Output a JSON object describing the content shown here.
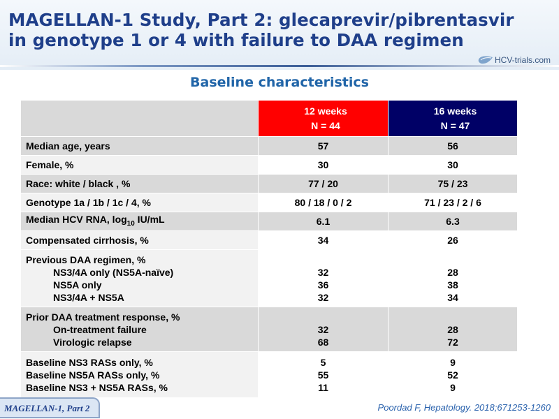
{
  "slide": {
    "title_line1": "MAGELLAN-1 Study, Part 2: glecaprevir/pibrentasvir",
    "title_line2": "in genotype 1 or 4 with failure to DAA regimen",
    "logo_text": "HCV-trials.com",
    "subtitle": "Baseline characteristics",
    "footer_label": "MAGELLAN-1,  Part 2",
    "citation": "Poordad F, Hepatology. 2018;671253-1260"
  },
  "colors": {
    "title": "#1f3f8a",
    "subtitle": "#2165a8",
    "header_12_weeks": "#ff0000",
    "header_16_weeks": "#000066",
    "row_gray": "#d9d9d9"
  },
  "table": {
    "headers": {
      "col1_line1": "12 weeks",
      "col1_line2": "N = 44",
      "col2_line1": "16 weeks",
      "col2_line2": "N = 47"
    },
    "rows": [
      {
        "label": "Median age, years",
        "w12": "57",
        "w16": "56"
      },
      {
        "label": "Female, %",
        "w12": "30",
        "w16": "30"
      },
      {
        "label": "Race: white / black , %",
        "w12": "77 / 20",
        "w16": "75 / 23"
      },
      {
        "label": "Genotype 1a / 1b / 1c  / 4, %",
        "w12": "80 / 18 / 0 / 2",
        "w16": "71 / 23 / 2 / 6"
      },
      {
        "label_prefix": "Median HCV RNA,  log",
        "label_sub": "10",
        "label_suffix": " IU/mL",
        "w12": "6.1",
        "w16": "6.3"
      },
      {
        "label": "Compensated cirrhosis, %",
        "w12": "34",
        "w16": "26"
      },
      {
        "label": "Previous DAA regimen, %",
        "items": [
          {
            "label": "NS3/4A only (NS5A-naïve)",
            "w12": "32",
            "w16": "28"
          },
          {
            "label": "NS5A only",
            "w12": "36",
            "w16": "38"
          },
          {
            "label": "NS3/4A + NS5A",
            "w12": "32",
            "w16": "34"
          }
        ]
      },
      {
        "label": "Prior DAA treatment response, %",
        "items": [
          {
            "label": "On-treatment failure",
            "w12": "32",
            "w16": "28"
          },
          {
            "label": "Virologic relapse",
            "w12": "68",
            "w16": "72"
          }
        ]
      },
      {
        "items": [
          {
            "label": "Baseline NS3 RASs only, %",
            "w12": "5",
            "w16": "9"
          },
          {
            "label": "Baseline NS5A RASs only, %",
            "w12": "55",
            "w16": "52"
          },
          {
            "label": "Baseline NS3 + NS5A  RASs, %",
            "w12": "11",
            "w16": "9"
          }
        ]
      }
    ]
  }
}
